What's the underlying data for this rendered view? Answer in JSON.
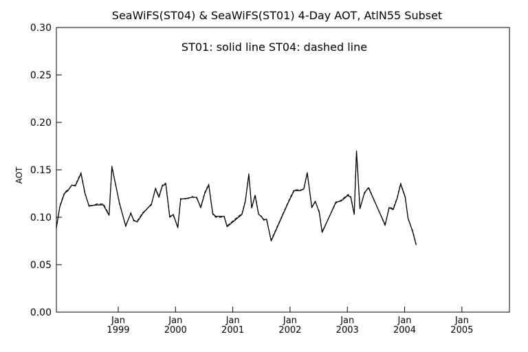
{
  "chart_data": {
    "type": "line",
    "title": "SeaWiFS(ST04) & SeaWiFS(ST01) 4-Day AOT, AtlN55 Subset",
    "annotation": "ST01: solid line   ST04: dashed line",
    "xlabel": "",
    "ylabel": "AOT",
    "ylim": [
      0.0,
      0.3
    ],
    "y_ticks": [
      "0.00",
      "0.05",
      "0.10",
      "0.15",
      "0.20",
      "0.25",
      "0.30"
    ],
    "x_ticks": [
      {
        "month": "Jan",
        "year": "1999",
        "x": 1999.0
      },
      {
        "month": "Jan",
        "year": "2000",
        "x": 2000.0
      },
      {
        "month": "Jan",
        "year": "2001",
        "x": 2001.0
      },
      {
        "month": "Jan",
        "year": "2002",
        "x": 2002.0
      },
      {
        "month": "Jan",
        "year": "2003",
        "x": 2003.0
      },
      {
        "month": "Jan",
        "year": "2004",
        "x": 2004.0
      },
      {
        "month": "Jan",
        "year": "2005",
        "x": 2005.0
      }
    ],
    "xlim": [
      1997.92,
      2005.83
    ],
    "grid": false,
    "legend": "none",
    "series": [
      {
        "name": "ST01",
        "line_style": "solid",
        "color": "#000000",
        "points": [
          [
            1997.92,
            0.089
          ],
          [
            1997.98,
            0.111
          ],
          [
            1998.06,
            0.125
          ],
          [
            1998.12,
            0.128
          ],
          [
            1998.19,
            0.134
          ],
          [
            1998.25,
            0.133
          ],
          [
            1998.35,
            0.146
          ],
          [
            1998.42,
            0.125
          ],
          [
            1998.49,
            0.112
          ],
          [
            1998.62,
            0.113
          ],
          [
            1998.74,
            0.113
          ],
          [
            1998.84,
            0.102
          ],
          [
            1998.89,
            0.153
          ],
          [
            1998.96,
            0.133
          ],
          [
            1999.02,
            0.115
          ],
          [
            1999.13,
            0.091
          ],
          [
            1999.22,
            0.104
          ],
          [
            1999.27,
            0.097
          ],
          [
            1999.33,
            0.095
          ],
          [
            1999.43,
            0.104
          ],
          [
            1999.58,
            0.114
          ],
          [
            1999.65,
            0.13
          ],
          [
            1999.71,
            0.121
          ],
          [
            1999.77,
            0.133
          ],
          [
            1999.83,
            0.135
          ],
          [
            1999.9,
            0.1
          ],
          [
            1999.96,
            0.103
          ],
          [
            2000.04,
            0.089
          ],
          [
            2000.09,
            0.119
          ],
          [
            2000.2,
            0.12
          ],
          [
            2000.29,
            0.121
          ],
          [
            2000.37,
            0.121
          ],
          [
            2000.44,
            0.11
          ],
          [
            2000.51,
            0.125
          ],
          [
            2000.58,
            0.134
          ],
          [
            2000.65,
            0.104
          ],
          [
            2000.7,
            0.101
          ],
          [
            2000.85,
            0.101
          ],
          [
            2000.9,
            0.09
          ],
          [
            2001.16,
            0.103
          ],
          [
            2001.22,
            0.117
          ],
          [
            2001.28,
            0.145
          ],
          [
            2001.33,
            0.11
          ],
          [
            2001.39,
            0.123
          ],
          [
            2001.45,
            0.103
          ],
          [
            2001.5,
            0.101
          ],
          [
            2001.54,
            0.097
          ],
          [
            2001.59,
            0.098
          ],
          [
            2001.67,
            0.075
          ],
          [
            2001.98,
            0.117
          ],
          [
            2002.07,
            0.128
          ],
          [
            2002.18,
            0.128
          ],
          [
            2002.24,
            0.13
          ],
          [
            2002.3,
            0.147
          ],
          [
            2002.38,
            0.11
          ],
          [
            2002.44,
            0.117
          ],
          [
            2002.51,
            0.105
          ],
          [
            2002.56,
            0.084
          ],
          [
            2002.8,
            0.116
          ],
          [
            2002.89,
            0.117
          ],
          [
            2003.01,
            0.123
          ],
          [
            2003.06,
            0.121
          ],
          [
            2003.12,
            0.103
          ],
          [
            2003.16,
            0.17
          ],
          [
            2003.22,
            0.109
          ],
          [
            2003.3,
            0.126
          ],
          [
            2003.37,
            0.131
          ],
          [
            2003.66,
            0.092
          ],
          [
            2003.73,
            0.11
          ],
          [
            2003.8,
            0.108
          ],
          [
            2003.87,
            0.12
          ],
          [
            2003.93,
            0.135
          ],
          [
            2004.01,
            0.121
          ],
          [
            2004.06,
            0.099
          ],
          [
            2004.14,
            0.085
          ],
          [
            2004.2,
            0.071
          ]
        ]
      },
      {
        "name": "ST04",
        "line_style": "dashed",
        "color": "#000000",
        "points": [
          [
            1997.92,
            0.088
          ],
          [
            1997.98,
            0.112
          ],
          [
            1998.06,
            0.126
          ],
          [
            1998.12,
            0.129
          ],
          [
            1998.19,
            0.133
          ],
          [
            1998.25,
            0.134
          ],
          [
            1998.35,
            0.147
          ],
          [
            1998.42,
            0.126
          ],
          [
            1998.49,
            0.111
          ],
          [
            1998.62,
            0.114
          ],
          [
            1998.74,
            0.114
          ],
          [
            1998.84,
            0.103
          ],
          [
            1998.89,
            0.154
          ],
          [
            1998.96,
            0.132
          ],
          [
            1999.02,
            0.116
          ],
          [
            1999.13,
            0.09
          ],
          [
            1999.22,
            0.105
          ],
          [
            1999.27,
            0.096
          ],
          [
            1999.33,
            0.096
          ],
          [
            1999.43,
            0.105
          ],
          [
            1999.58,
            0.113
          ],
          [
            1999.65,
            0.131
          ],
          [
            1999.71,
            0.122
          ],
          [
            1999.77,
            0.134
          ],
          [
            1999.83,
            0.136
          ],
          [
            1999.9,
            0.101
          ],
          [
            1999.96,
            0.102
          ],
          [
            2000.04,
            0.09
          ],
          [
            2000.09,
            0.12
          ],
          [
            2000.2,
            0.119
          ],
          [
            2000.29,
            0.122
          ],
          [
            2000.37,
            0.12
          ],
          [
            2000.44,
            0.111
          ],
          [
            2000.51,
            0.126
          ],
          [
            2000.58,
            0.135
          ],
          [
            2000.65,
            0.103
          ],
          [
            2000.7,
            0.1
          ],
          [
            2000.85,
            0.1
          ],
          [
            2000.9,
            0.091
          ],
          [
            2001.16,
            0.104
          ],
          [
            2001.22,
            0.118
          ],
          [
            2001.28,
            0.146
          ],
          [
            2001.33,
            0.109
          ],
          [
            2001.39,
            0.124
          ],
          [
            2001.45,
            0.104
          ],
          [
            2001.5,
            0.1
          ],
          [
            2001.54,
            0.098
          ],
          [
            2001.59,
            0.097
          ],
          [
            2001.67,
            0.076
          ],
          [
            2001.98,
            0.118
          ],
          [
            2002.07,
            0.129
          ],
          [
            2002.18,
            0.129
          ],
          [
            2002.24,
            0.129
          ],
          [
            2002.3,
            0.146
          ],
          [
            2002.38,
            0.111
          ],
          [
            2002.44,
            0.116
          ],
          [
            2002.51,
            0.106
          ],
          [
            2002.56,
            0.085
          ],
          [
            2002.8,
            0.115
          ],
          [
            2002.89,
            0.118
          ],
          [
            2003.01,
            0.124
          ],
          [
            2003.06,
            0.122
          ],
          [
            2003.12,
            0.104
          ],
          [
            2003.16,
            0.169
          ],
          [
            2003.22,
            0.11
          ],
          [
            2003.3,
            0.125
          ],
          [
            2003.37,
            0.132
          ],
          [
            2003.66,
            0.091
          ],
          [
            2003.73,
            0.111
          ],
          [
            2003.8,
            0.109
          ],
          [
            2003.87,
            0.121
          ],
          [
            2003.93,
            0.136
          ],
          [
            2004.01,
            0.122
          ],
          [
            2004.06,
            0.098
          ],
          [
            2004.14,
            0.086
          ],
          [
            2004.2,
            0.072
          ]
        ]
      }
    ]
  }
}
